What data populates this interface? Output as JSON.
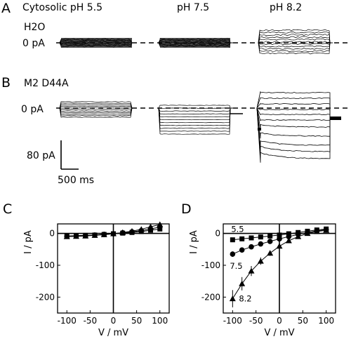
{
  "panels": {
    "A": {
      "letter": "A",
      "conditions": [
        "Cytosolic pH 5.5",
        "pH 7.5",
        "pH 8.2"
      ],
      "construct": "H2O",
      "zero_label": "0 pA"
    },
    "B": {
      "letter": "B",
      "construct": "M2 D44A",
      "zero_label": "0 pA",
      "scale_current": "80 pA",
      "scale_time": "500 ms"
    },
    "C": {
      "letter": "C"
    },
    "D": {
      "letter": "D"
    }
  },
  "chart_data": [
    {
      "type": "scatter",
      "panel": "C",
      "xlabel": "V / mV",
      "ylabel": "I / pA",
      "xlim": [
        -120,
        120
      ],
      "ylim": [
        -250,
        30
      ],
      "xticks": [
        -100,
        -50,
        0,
        50,
        100
      ],
      "yticks": [
        0,
        -100,
        -200
      ],
      "x": [
        -100,
        -80,
        -60,
        -40,
        -20,
        0,
        20,
        40,
        60,
        80,
        100
      ],
      "series": [
        {
          "marker": "square",
          "values": [
            -8,
            -7,
            -6,
            -5,
            -3,
            -1,
            1,
            3,
            6,
            10,
            14
          ]
        },
        {
          "marker": "circle",
          "values": [
            -9,
            -8,
            -7,
            -5,
            -3,
            -1,
            2,
            5,
            9,
            14,
            20
          ]
        },
        {
          "marker": "triangle",
          "values": [
            -10,
            -9,
            -8,
            -6,
            -4,
            -1,
            3,
            7,
            13,
            21,
            28
          ]
        }
      ]
    },
    {
      "type": "scatter",
      "panel": "D",
      "xlabel": "V / mV",
      "ylabel": "I / pA",
      "xlim": [
        -120,
        120
      ],
      "ylim": [
        -250,
        30
      ],
      "xticks": [
        -100,
        -50,
        0,
        50,
        100
      ],
      "yticks": [
        0,
        -100,
        -200
      ],
      "x": [
        -100,
        -80,
        -60,
        -40,
        -20,
        0,
        20,
        40,
        60,
        80,
        100
      ],
      "series": [
        {
          "name": "5.5",
          "marker": "square",
          "values": [
            -20,
            -17,
            -14,
            -11,
            -8,
            -5,
            -1,
            3,
            7,
            11,
            14
          ]
        },
        {
          "name": "7.5",
          "marker": "circle",
          "values": [
            -65,
            -52,
            -42,
            -33,
            -25,
            -17,
            -10,
            -3,
            3,
            8,
            12
          ]
        },
        {
          "name": "8.2",
          "marker": "triangle",
          "values": [
            -205,
            -158,
            -118,
            -87,
            -62,
            -40,
            -23,
            -10,
            0,
            6,
            10
          ]
        }
      ]
    }
  ]
}
